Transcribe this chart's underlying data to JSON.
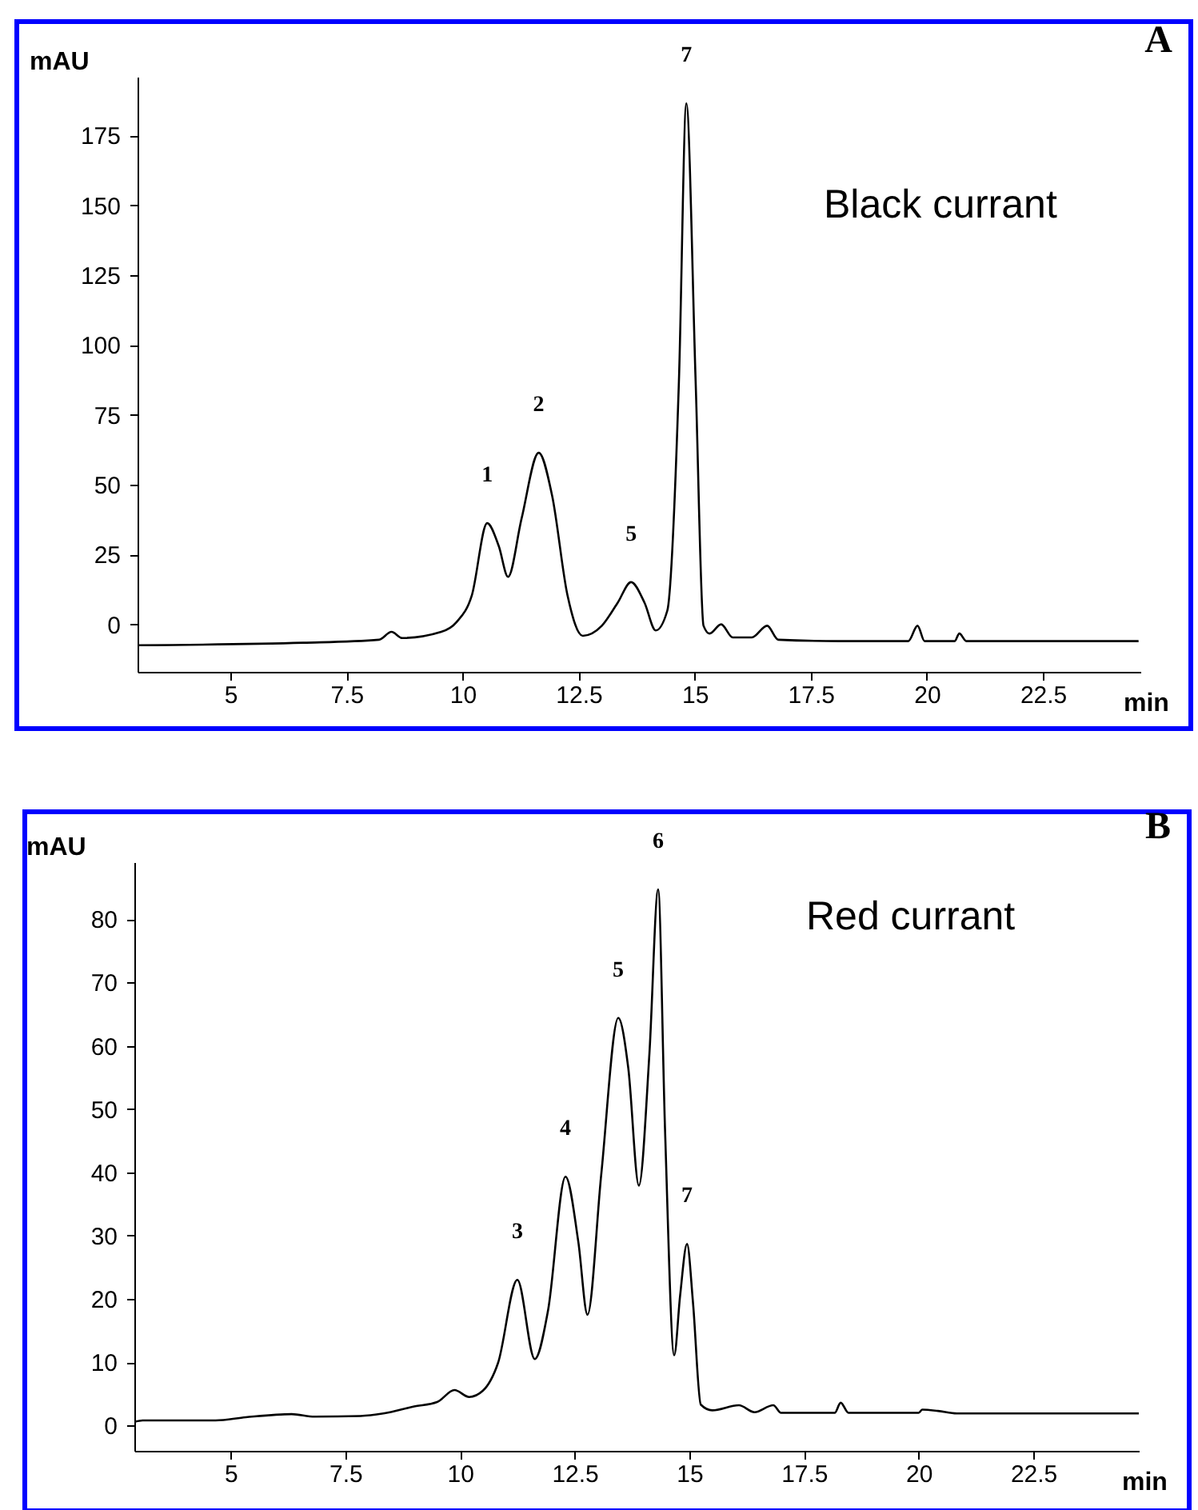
{
  "chart_data": [
    {
      "type": "line",
      "title": "A",
      "xlabel": "min",
      "ylabel": "mAU",
      "xlim": [
        3,
        24.6
      ],
      "ylim": [
        -17,
        196
      ],
      "xticks": [
        5,
        7.5,
        10,
        12.5,
        15,
        17.5,
        20,
        22.5
      ],
      "yticks": [
        0,
        25,
        50,
        75,
        100,
        125,
        150,
        175
      ],
      "x": [
        3,
        6.57,
        8.2,
        8.47,
        8.7,
        9.54,
        9.87,
        10.2,
        10.53,
        10.78,
        10.98,
        11.27,
        11.64,
        11.93,
        12.26,
        12.59,
        13.0,
        13.34,
        13.63,
        13.92,
        14.16,
        14.41,
        14.66,
        14.82,
        15.02,
        15.19,
        15.32,
        15.57,
        15.82,
        16.23,
        16.56,
        16.8,
        18.12,
        19.6,
        19.8,
        19.95,
        20.6,
        20.7,
        20.85,
        24.56
      ],
      "series": [
        {
          "color": "#000000",
          "values": [
            -7.5,
            -6.6,
            -5.5,
            -2.7,
            -4.9,
            -2.7,
            0.8,
            10.4,
            36.2,
            28,
            17,
            37.8,
            61.4,
            46,
            10.4,
            -4.1,
            -0.5,
            7.7,
            15.1,
            7.7,
            -2.2,
            4.9,
            87,
            186.5,
            87,
            -0.5,
            -3.3,
            0,
            -4.7,
            -4.7,
            -0.5,
            -5.5,
            -6,
            -6,
            -0.5,
            -6,
            -6,
            -3.3,
            -6,
            -6
          ]
        }
      ],
      "annotations": [
        "Black currant",
        {
          "text": "1",
          "x": 10.53,
          "y": 36.2
        },
        {
          "text": "2",
          "x": 11.64,
          "y": 61.4
        },
        {
          "text": "5",
          "x": 13.63,
          "y": 15.1
        },
        {
          "text": "7",
          "x": 14.82,
          "y": 186.5
        }
      ]
    },
    {
      "type": "line",
      "title": "B",
      "xlabel": "min",
      "ylabel": "mAU",
      "xlim": [
        2.9,
        24.8
      ],
      "ylim": [
        -4,
        89
      ],
      "xticks": [
        5,
        7.5,
        10,
        12.5,
        15,
        17.5,
        20,
        22.5
      ],
      "yticks": [
        0,
        10,
        20,
        30,
        40,
        50,
        60,
        70,
        80
      ],
      "x": [
        2.92,
        3.08,
        4.67,
        5.33,
        6.33,
        6.83,
        7.83,
        8.33,
        9.0,
        9.5,
        9.88,
        10.2,
        10.5,
        10.83,
        11.25,
        11.63,
        11.92,
        12.3,
        12.58,
        12.78,
        13.08,
        13.45,
        13.67,
        13.9,
        14.13,
        14.32,
        14.47,
        14.67,
        14.8,
        14.95,
        15.08,
        15.25,
        15.5,
        16.08,
        16.42,
        16.83,
        17.0,
        18.17,
        18.3,
        18.47,
        20.0,
        20.08,
        20.42,
        20.83,
        24.8
      ],
      "series": [
        {
          "color": "#000000",
          "values": [
            0.6,
            0.8,
            0.8,
            1.3,
            1.8,
            1.4,
            1.5,
            1.9,
            3.0,
            3.7,
            5.6,
            4.5,
            5.5,
            9.9,
            23,
            10.5,
            18.2,
            39.3,
            29,
            17.5,
            39.7,
            64.4,
            56.4,
            37.9,
            58.8,
            84.7,
            46.8,
            11.1,
            20.6,
            28.7,
            19.4,
            3.3,
            2.4,
            3.2,
            2.1,
            3.2,
            2.0,
            2.0,
            3.6,
            2.0,
            2.0,
            2.5,
            2.3,
            1.9,
            1.9
          ]
        }
      ],
      "annotations": [
        "Red currant",
        {
          "text": "3",
          "x": 11.25,
          "y": 23
        },
        {
          "text": "4",
          "x": 12.3,
          "y": 39.3
        },
        {
          "text": "5",
          "x": 13.45,
          "y": 64.4
        },
        {
          "text": "6",
          "x": 14.32,
          "y": 84.7
        },
        {
          "text": "7",
          "x": 14.95,
          "y": 28.7
        }
      ]
    }
  ]
}
